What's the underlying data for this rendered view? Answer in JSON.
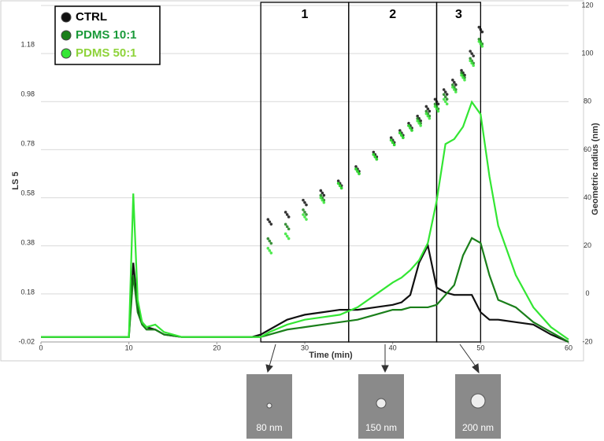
{
  "chart_data": {
    "type": "line",
    "xlabel": "Time (min)",
    "ylabel": "LS 5",
    "y2label": "Geometric radius (nm)",
    "x": [
      0,
      2,
      4,
      6,
      8,
      10,
      10.5,
      11,
      11.5,
      12,
      13,
      14,
      16,
      18,
      20,
      22,
      24,
      25,
      26,
      28,
      30,
      32,
      34,
      36,
      38,
      40,
      41,
      42,
      43,
      44,
      45,
      46,
      47,
      48,
      49,
      50,
      51,
      52,
      54,
      56,
      58,
      60
    ],
    "series": [
      {
        "name": "CTRL",
        "color": "#111111",
        "values": [
          0,
          0,
          0,
          0,
          0,
          0,
          0.3,
          0.12,
          0.06,
          0.04,
          0.03,
          0.01,
          0,
          0,
          0,
          0,
          0,
          0.01,
          0.03,
          0.07,
          0.09,
          0.1,
          0.11,
          0.11,
          0.12,
          0.13,
          0.14,
          0.17,
          0.3,
          0.37,
          0.2,
          0.18,
          0.17,
          0.17,
          0.17,
          0.1,
          0.07,
          0.07,
          0.06,
          0.05,
          0.01,
          -0.02
        ],
        "radius": [
          null,
          null,
          null,
          null,
          null,
          null,
          null,
          null,
          null,
          null,
          null,
          null,
          null,
          null,
          null,
          null,
          null,
          null,
          30,
          33,
          38,
          42,
          46,
          52,
          58,
          64,
          67,
          70,
          73,
          77,
          80,
          84,
          88,
          92,
          100,
          110,
          null,
          null,
          null,
          null,
          null,
          null
        ]
      },
      {
        "name": "PDMS 10:1",
        "color": "#1a7f1a",
        "values": [
          0,
          0,
          0,
          0,
          0,
          0,
          0.25,
          0.1,
          0.05,
          0.03,
          0.03,
          0.01,
          0,
          0,
          0,
          0,
          0,
          0,
          0.01,
          0.03,
          0.04,
          0.05,
          0.06,
          0.07,
          0.09,
          0.11,
          0.11,
          0.12,
          0.12,
          0.12,
          0.13,
          0.17,
          0.21,
          0.33,
          0.4,
          0.38,
          0.25,
          0.15,
          0.12,
          0.06,
          0.02,
          -0.02
        ],
        "radius": [
          null,
          null,
          null,
          null,
          null,
          null,
          null,
          null,
          null,
          null,
          null,
          null,
          null,
          null,
          null,
          null,
          null,
          null,
          22,
          28,
          34,
          40,
          45,
          51,
          57,
          63,
          66,
          69,
          72,
          75,
          78,
          82,
          86,
          91,
          97,
          105,
          null,
          null,
          null,
          null,
          null,
          null
        ]
      },
      {
        "name": "PDMS 50:1",
        "color": "#33e633",
        "values": [
          0,
          0,
          0,
          0,
          0,
          0,
          0.58,
          0.15,
          0.06,
          0.04,
          0.05,
          0.02,
          0,
          0,
          0,
          0,
          0,
          0,
          0.02,
          0.05,
          0.07,
          0.08,
          0.09,
          0.12,
          0.17,
          0.22,
          0.24,
          0.27,
          0.31,
          0.38,
          0.55,
          0.78,
          0.8,
          0.85,
          0.95,
          0.9,
          0.65,
          0.45,
          0.25,
          0.12,
          0.04,
          -0.01
        ],
        "radius": [
          null,
          null,
          null,
          null,
          null,
          null,
          null,
          null,
          null,
          null,
          null,
          null,
          null,
          null,
          null,
          null,
          null,
          null,
          18,
          24,
          32,
          39,
          45,
          51,
          57,
          63,
          66,
          69,
          71,
          74,
          77,
          80,
          85,
          90,
          96,
          104,
          null,
          null,
          null,
          null,
          null,
          null
        ]
      }
    ],
    "xlim": [
      0,
      60
    ],
    "xticks": [
      0,
      10,
      20,
      30,
      40,
      50,
      60
    ],
    "ylim": [
      -0.02,
      1.34
    ],
    "yticks": [
      -0.02,
      0.18,
      0.38,
      0.58,
      0.78,
      0.98,
      1.18
    ],
    "y2lim": [
      -20,
      120
    ],
    "y2ticks": [
      -20,
      0,
      20,
      40,
      60,
      80,
      100,
      120
    ],
    "grid": true,
    "regions": [
      {
        "label": "1",
        "range": [
          25,
          35
        ]
      },
      {
        "label": "2",
        "range": [
          35,
          45
        ]
      },
      {
        "label": "3",
        "range": [
          45,
          50
        ]
      }
    ],
    "images": [
      "80 nm",
      "150 nm",
      "200 nm"
    ]
  }
}
